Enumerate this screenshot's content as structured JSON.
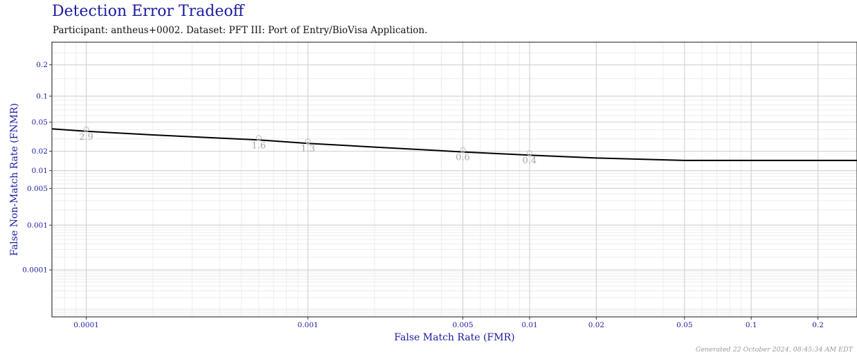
{
  "chart_data": {
    "type": "line",
    "title": "Detection Error Tradeoff",
    "subtitle": "Participant: antheus+0002. Dataset: PFT III: Port of Entry/BioVisa Application.",
    "xlabel": "False Match Rate (FMR)",
    "ylabel": "False Non-Match Rate (FNMR)",
    "x_scale": "log",
    "y_scale": "probit",
    "xlim": [
      7e-05,
      0.3
    ],
    "ylim": [
      6e-06,
      0.3
    ],
    "x_ticks": [
      0.0001,
      0.001,
      0.005,
      0.01,
      0.02,
      0.05,
      0.1,
      0.2
    ],
    "x_tick_labels": [
      "0.0001",
      "0.001",
      "0.005",
      "0.01",
      "0.02",
      "0.05",
      "0.1",
      "0.2"
    ],
    "y_ticks": [
      0.2,
      0.1,
      0.05,
      0.02,
      0.01,
      0.005,
      0.001,
      0.0001
    ],
    "y_tick_labels": [
      "0.2",
      "0.1",
      "0.05",
      "0.02",
      "0.01",
      "0.005",
      "0.001",
      "0.0001"
    ],
    "grid": true,
    "series": [
      {
        "color": "#000000",
        "points": [
          [
            7e-05,
            0.041
          ],
          [
            0.0001,
            0.038
          ],
          [
            0.0002,
            0.034
          ],
          [
            0.0006,
            0.029
          ],
          [
            0.001,
            0.026
          ],
          [
            0.002,
            0.023
          ],
          [
            0.005,
            0.0195
          ],
          [
            0.01,
            0.0175
          ],
          [
            0.02,
            0.0158
          ],
          [
            0.05,
            0.0145
          ],
          [
            0.1,
            0.0145
          ],
          [
            0.3,
            0.0145
          ]
        ]
      }
    ],
    "annotations": [
      {
        "x": 0.0001,
        "y": 0.038,
        "text": "2.9"
      },
      {
        "x": 0.0006,
        "y": 0.029,
        "text": "1.6"
      },
      {
        "x": 0.001,
        "y": 0.026,
        "text": "1.3"
      },
      {
        "x": 0.005,
        "y": 0.0195,
        "text": "0.6"
      },
      {
        "x": 0.01,
        "y": 0.0175,
        "text": "0.4"
      }
    ]
  },
  "footer": "Generated 22 October 2024, 08:45:34 AM EDT"
}
